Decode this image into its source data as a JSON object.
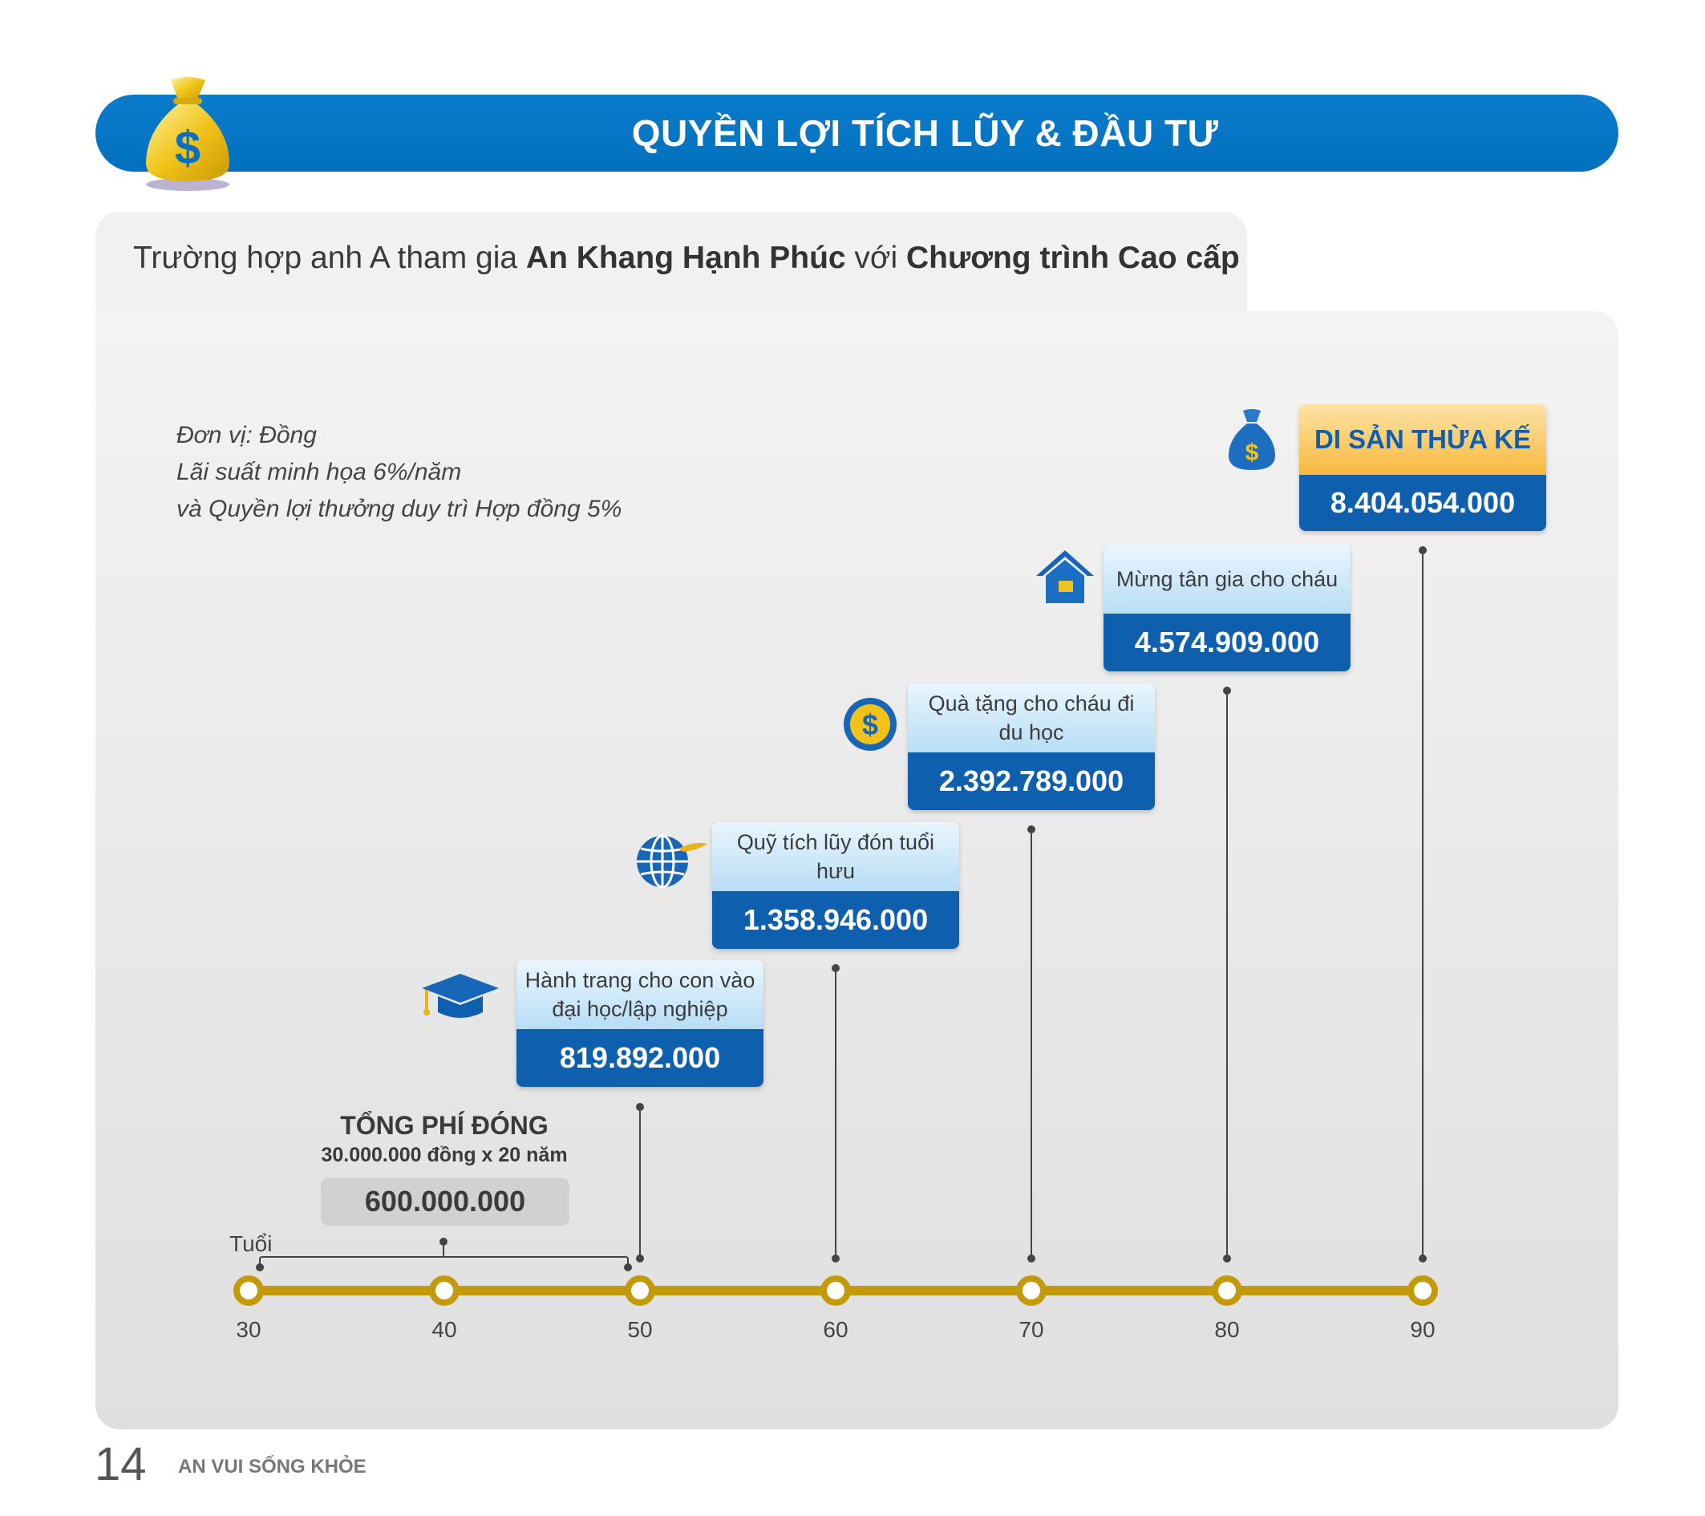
{
  "header": {
    "title": "QUYỀN LỢI TÍCH LŨY & ĐẦU TƯ"
  },
  "subtitle": {
    "prefix": "Trường hợp anh A tham gia ",
    "product": "An Khang Hạnh Phúc",
    "middle": " với ",
    "program": "Chương trình Cao cấp"
  },
  "notes": {
    "unit": "Đơn vị:  Đồng",
    "rate": "Lãi suất minh họa 6%/năm",
    "bonus": "và Quyền lợi thưởng duy trì Hợp đồng 5%"
  },
  "timeline": {
    "axis_label": "Tuổi",
    "ages": [
      "30",
      "40",
      "50",
      "60",
      "70",
      "80",
      "90"
    ],
    "line_color": "#c39a0a"
  },
  "premium": {
    "title": "TỔNG PHÍ ĐÓNG",
    "detail": "30.000.000 đồng x 20 năm",
    "total": "600.000.000"
  },
  "benefits": [
    {
      "age": "50",
      "label": "Hành trang cho con vào đại học/lập nghiệp",
      "value": "819.892.000",
      "icon": "graduation-cap-icon"
    },
    {
      "age": "60",
      "label": "Quỹ tích lũy đón tuổi hưu",
      "value": "1.358.946.000",
      "icon": "globe-plane-icon"
    },
    {
      "age": "70",
      "label": "Quà tặng cho cháu đi du học",
      "value": "2.392.789.000",
      "icon": "dollar-coin-icon"
    },
    {
      "age": "80",
      "label": "Mừng tân gia cho cháu",
      "value": "4.574.909.000",
      "icon": "house-icon"
    },
    {
      "age": "90",
      "label": "DI SẢN THỪA KẾ",
      "value": "8.404.054.000",
      "icon": "money-bag-icon"
    }
  ],
  "colors": {
    "primary_blue": "#0270bd",
    "dark_blue": "#0e5fae",
    "gold": "#c39a0a",
    "orange": "#f7b93e"
  },
  "footer": {
    "page_number": "14",
    "brand": "AN VUI SỐNG KHỎE"
  }
}
